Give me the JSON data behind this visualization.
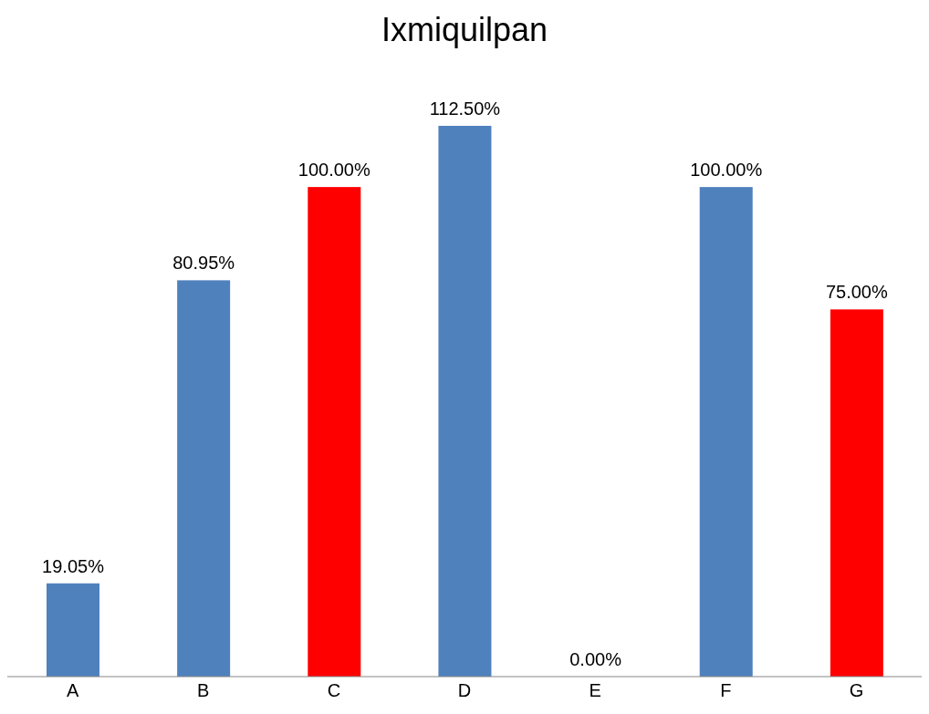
{
  "chart_data": {
    "type": "bar",
    "title": "Ixmiquilpan",
    "categories": [
      "A",
      "B",
      "C",
      "D",
      "E",
      "F",
      "G"
    ],
    "values": [
      19.05,
      80.95,
      100,
      112.5,
      0,
      100,
      75
    ],
    "colors": [
      "#4f81bd",
      "#4f81bd",
      "#ff0000",
      "#4f81bd",
      "#4f81bd",
      "#4f81bd",
      "#ff0000"
    ],
    "value_labels": [
      "19.05%",
      "80.95%",
      "100.00%",
      "112.50%",
      "0.00%",
      "100.00%",
      "75.00%"
    ],
    "grid": false,
    "legend": false
  }
}
